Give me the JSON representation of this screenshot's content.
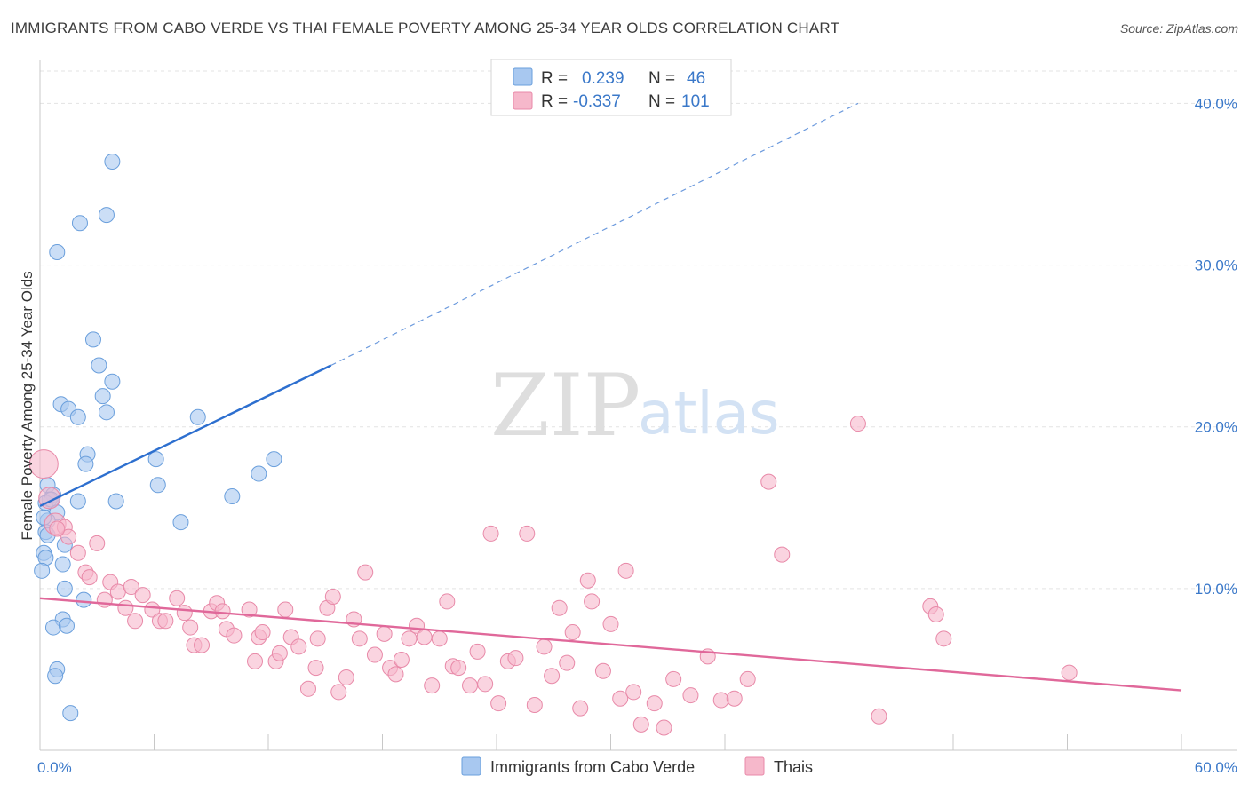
{
  "title": "IMMIGRANTS FROM CABO VERDE VS THAI FEMALE POVERTY AMONG 25-34 YEAR OLDS CORRELATION CHART",
  "source": "Source: ZipAtlas.com",
  "watermark": {
    "zip": "ZIP",
    "atlas": "atlas"
  },
  "legend": {
    "rows": [
      {
        "r_label": "R =",
        "r_value": "0.239",
        "n_label": "N =",
        "n_value": "46",
        "color": "#a8c8f0",
        "stroke": "#6a9fdc"
      },
      {
        "r_label": "R =",
        "r_value": "-0.337",
        "n_label": "N =",
        "n_value": "101",
        "color": "#f6b8cb",
        "stroke": "#e889a8"
      }
    ]
  },
  "bottom_legend": [
    {
      "label": "Immigrants from Cabo Verde",
      "color": "#a8c8f0",
      "stroke": "#6a9fdc"
    },
    {
      "label": "Thais",
      "color": "#f6b8cb",
      "stroke": "#e889a8"
    }
  ],
  "chart_data": {
    "type": "scatter",
    "title": "IMMIGRANTS FROM CABO VERDE VS THAI FEMALE POVERTY AMONG 25-34 YEAR OLDS CORRELATION CHART",
    "xlabel": "",
    "ylabel": "Female Poverty Among 25-34 Year Olds",
    "xlim": [
      0,
      60
    ],
    "ylim": [
      0,
      42
    ],
    "x_tick_labels": [
      {
        "value": 0,
        "label": "0.0%"
      },
      {
        "value": 60,
        "label": "60.0%"
      }
    ],
    "y_tick_labels": [
      {
        "value": 10,
        "label": "10.0%"
      },
      {
        "value": 20,
        "label": "20.0%"
      },
      {
        "value": 30,
        "label": "30.0%"
      },
      {
        "value": 40,
        "label": "40.0%"
      }
    ],
    "grid": true,
    "series": [
      {
        "name": "Immigrants from Cabo Verde",
        "color": "#a8c8f0",
        "stroke": "#6a9fdc",
        "trend": {
          "x0": 0,
          "y0": 15.1,
          "x1": 15.3,
          "y1": 23.8,
          "dashed_to_x": 43,
          "dashed_to_y": 40.0,
          "color": "#2d6fcf"
        },
        "points": [
          [
            3.8,
            36.4
          ],
          [
            3.5,
            33.1
          ],
          [
            2.1,
            32.6
          ],
          [
            0.9,
            30.8
          ],
          [
            2.8,
            25.4
          ],
          [
            3.1,
            23.8
          ],
          [
            3.8,
            22.8
          ],
          [
            3.3,
            21.9
          ],
          [
            1.1,
            21.4
          ],
          [
            1.5,
            21.1
          ],
          [
            3.5,
            20.9
          ],
          [
            2.0,
            20.6
          ],
          [
            8.3,
            20.6
          ],
          [
            2.5,
            18.3
          ],
          [
            6.1,
            18.0
          ],
          [
            12.3,
            18.0
          ],
          [
            2.4,
            17.7
          ],
          [
            11.5,
            17.1
          ],
          [
            0.4,
            16.4
          ],
          [
            6.2,
            16.4
          ],
          [
            0.7,
            15.8
          ],
          [
            0.5,
            15.5
          ],
          [
            0.3,
            15.3
          ],
          [
            0.6,
            15.5
          ],
          [
            2.0,
            15.4
          ],
          [
            4.0,
            15.4
          ],
          [
            10.1,
            15.7
          ],
          [
            0.9,
            14.7
          ],
          [
            0.4,
            14.2
          ],
          [
            7.4,
            14.1
          ],
          [
            0.3,
            13.5
          ],
          [
            0.4,
            13.3
          ],
          [
            1.3,
            12.7
          ],
          [
            0.2,
            12.2
          ],
          [
            0.3,
            11.9
          ],
          [
            1.2,
            11.5
          ],
          [
            0.1,
            11.1
          ],
          [
            1.3,
            10.0
          ],
          [
            2.3,
            9.3
          ],
          [
            1.2,
            8.1
          ],
          [
            0.7,
            7.6
          ],
          [
            1.4,
            7.7
          ],
          [
            0.9,
            5.0
          ],
          [
            0.8,
            4.6
          ],
          [
            1.6,
            2.3
          ],
          [
            0.2,
            14.4
          ]
        ]
      },
      {
        "name": "Thais",
        "color": "#f6b8cb",
        "stroke": "#e889a8",
        "trend": {
          "x0": 0,
          "y0": 9.4,
          "x1": 60,
          "y1": 3.7,
          "color": "#e0689a"
        },
        "points": [
          [
            0.2,
            17.7
          ],
          [
            0.5,
            15.6
          ],
          [
            0.8,
            14.0
          ],
          [
            1.3,
            13.8
          ],
          [
            1.5,
            13.2
          ],
          [
            3.0,
            12.8
          ],
          [
            2.0,
            12.2
          ],
          [
            2.4,
            11.0
          ],
          [
            2.6,
            10.7
          ],
          [
            3.7,
            10.4
          ],
          [
            4.1,
            9.8
          ],
          [
            4.8,
            10.1
          ],
          [
            5.4,
            9.6
          ],
          [
            3.4,
            9.3
          ],
          [
            4.5,
            8.8
          ],
          [
            5.0,
            8.0
          ],
          [
            5.9,
            8.7
          ],
          [
            6.3,
            8.0
          ],
          [
            6.6,
            8.0
          ],
          [
            7.2,
            9.4
          ],
          [
            7.6,
            8.5
          ],
          [
            7.9,
            7.6
          ],
          [
            8.1,
            6.5
          ],
          [
            8.5,
            6.5
          ],
          [
            9.0,
            8.6
          ],
          [
            9.3,
            9.1
          ],
          [
            9.6,
            8.6
          ],
          [
            9.8,
            7.5
          ],
          [
            10.2,
            7.1
          ],
          [
            11.0,
            8.7
          ],
          [
            11.3,
            5.5
          ],
          [
            11.5,
            7.0
          ],
          [
            11.7,
            7.3
          ],
          [
            12.4,
            5.5
          ],
          [
            12.6,
            6.0
          ],
          [
            12.9,
            8.7
          ],
          [
            13.2,
            7.0
          ],
          [
            13.6,
            6.4
          ],
          [
            14.1,
            3.8
          ],
          [
            14.5,
            5.1
          ],
          [
            14.6,
            6.9
          ],
          [
            15.1,
            8.8
          ],
          [
            15.4,
            9.5
          ],
          [
            15.7,
            3.6
          ],
          [
            16.1,
            4.5
          ],
          [
            16.5,
            8.1
          ],
          [
            16.8,
            6.9
          ],
          [
            17.1,
            11.0
          ],
          [
            17.6,
            5.9
          ],
          [
            18.1,
            7.2
          ],
          [
            18.4,
            5.1
          ],
          [
            18.7,
            4.7
          ],
          [
            19.0,
            5.6
          ],
          [
            19.4,
            6.9
          ],
          [
            19.8,
            7.7
          ],
          [
            20.2,
            7.0
          ],
          [
            20.6,
            4.0
          ],
          [
            21.0,
            6.9
          ],
          [
            21.4,
            9.2
          ],
          [
            21.7,
            5.2
          ],
          [
            22.0,
            5.1
          ],
          [
            22.6,
            4.0
          ],
          [
            23.0,
            6.1
          ],
          [
            23.4,
            4.1
          ],
          [
            23.7,
            13.4
          ],
          [
            24.1,
            2.9
          ],
          [
            24.6,
            5.5
          ],
          [
            25.0,
            5.7
          ],
          [
            25.6,
            13.4
          ],
          [
            26.0,
            2.8
          ],
          [
            26.5,
            6.4
          ],
          [
            26.9,
            4.6
          ],
          [
            27.3,
            8.8
          ],
          [
            27.7,
            5.4
          ],
          [
            28.0,
            7.3
          ],
          [
            28.4,
            2.6
          ],
          [
            28.8,
            10.5
          ],
          [
            29.0,
            9.2
          ],
          [
            29.6,
            4.9
          ],
          [
            30.0,
            7.8
          ],
          [
            30.5,
            3.2
          ],
          [
            30.8,
            11.1
          ],
          [
            31.2,
            3.6
          ],
          [
            31.6,
            1.6
          ],
          [
            32.3,
            2.9
          ],
          [
            32.8,
            1.4
          ],
          [
            33.3,
            4.4
          ],
          [
            34.2,
            3.4
          ],
          [
            35.1,
            5.8
          ],
          [
            35.8,
            3.1
          ],
          [
            36.5,
            3.2
          ],
          [
            37.2,
            4.4
          ],
          [
            38.3,
            16.6
          ],
          [
            39.0,
            12.1
          ],
          [
            43.0,
            20.2
          ],
          [
            44.1,
            2.1
          ],
          [
            46.8,
            8.9
          ],
          [
            47.1,
            8.4
          ],
          [
            47.5,
            6.9
          ],
          [
            54.1,
            4.8
          ],
          [
            0.9,
            13.7
          ]
        ]
      }
    ]
  }
}
